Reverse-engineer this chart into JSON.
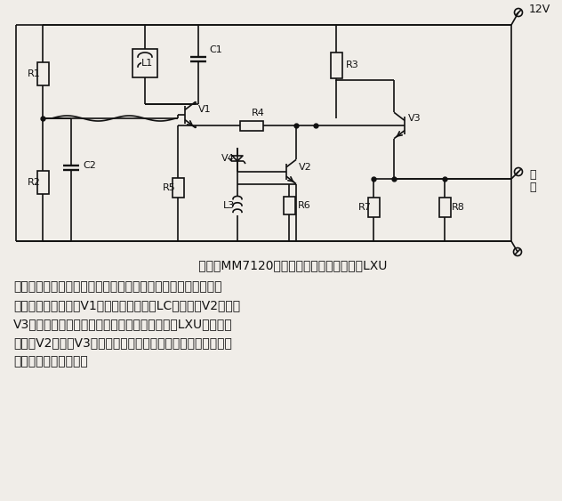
{
  "bg_color": "#f0ede8",
  "line_color": "#111111",
  "voltage_label": "12V",
  "title_text": "      所示为MM7120型平面磨床无触点行程开关LXU",
  "body_lines": [
    "的原理图。从图中可以看出，电路由振荡器、放大器和射极跟随",
    "器三级组成，三极管V1、电感、电容组成LC振荡器。V2导通时",
    "V3截止，输出电压为零。当工作台的机械块通过LXU时，振荡",
    "停止，V2截止，V3导通，有电压输出，晶闸管导通，电动机转",
    "动，工作台横向进给。"
  ]
}
